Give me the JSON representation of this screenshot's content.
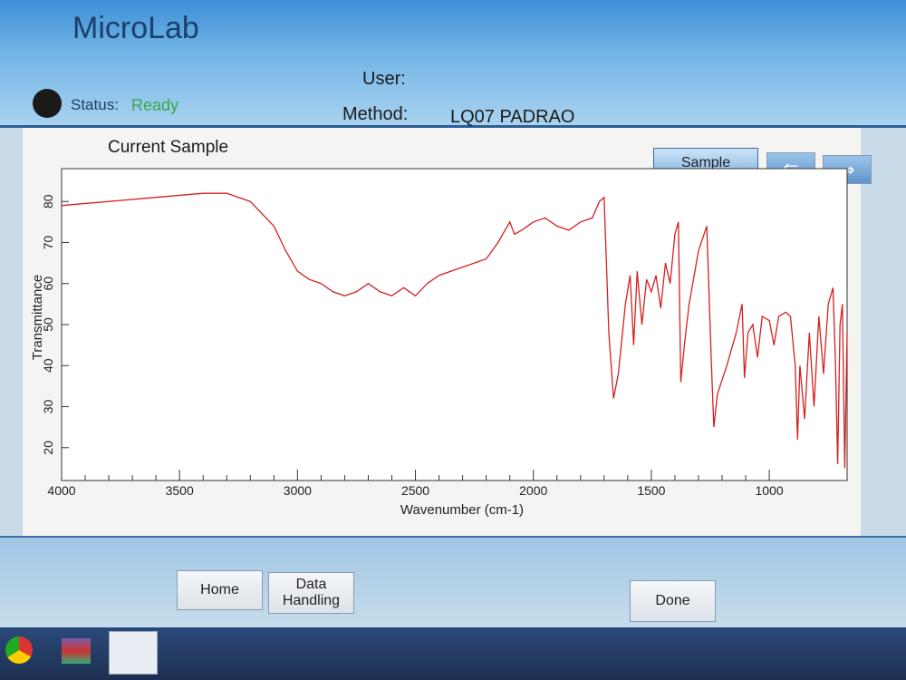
{
  "header": {
    "app_title": "MicroLab",
    "status_label": "Status:",
    "status_value": "Ready",
    "user_label": "User:",
    "method_label": "Method:",
    "method_value": "LQ07 PADRAO"
  },
  "panel": {
    "title": "Current Sample",
    "sample_button": "Sample"
  },
  "chart_data": {
    "type": "line",
    "x_label": "Wavenumber (cm-1)",
    "y_label": "Transmittance",
    "color": "#d42020",
    "x": [
      4000,
      3800,
      3600,
      3400,
      3300,
      3200,
      3100,
      3050,
      3000,
      2950,
      2900,
      2850,
      2800,
      2750,
      2700,
      2650,
      2600,
      2550,
      2500,
      2450,
      2400,
      2300,
      2200,
      2150,
      2100,
      2080,
      2050,
      2000,
      1950,
      1900,
      1850,
      1800,
      1750,
      1720,
      1700,
      1680,
      1660,
      1640,
      1610,
      1590,
      1575,
      1560,
      1540,
      1520,
      1500,
      1480,
      1460,
      1440,
      1420,
      1400,
      1385,
      1375,
      1360,
      1340,
      1300,
      1265,
      1245,
      1235,
      1220,
      1180,
      1140,
      1115,
      1105,
      1090,
      1070,
      1050,
      1030,
      1000,
      980,
      960,
      930,
      910,
      890,
      880,
      870,
      850,
      830,
      810,
      790,
      770,
      750,
      730,
      720,
      710,
      700,
      690,
      680,
      670
    ],
    "values": [
      79,
      80,
      81,
      82,
      82,
      80,
      74,
      68,
      63,
      61,
      60,
      58,
      57,
      58,
      60,
      58,
      57,
      59,
      57,
      60,
      62,
      64,
      66,
      70,
      75,
      72,
      73,
      75,
      76,
      74,
      73,
      75,
      76,
      80,
      81,
      48,
      32,
      38,
      55,
      62,
      45,
      63,
      50,
      61,
      58,
      62,
      54,
      65,
      60,
      72,
      75,
      36,
      45,
      55,
      68,
      74,
      40,
      25,
      33,
      40,
      48,
      55,
      37,
      48,
      50,
      42,
      52,
      51,
      45,
      52,
      53,
      52,
      40,
      22,
      40,
      27,
      48,
      30,
      52,
      38,
      55,
      59,
      42,
      16,
      50,
      55,
      15,
      48
    ],
    "xlim": [
      4000,
      670
    ],
    "xticks": [
      4000,
      3500,
      3000,
      2500,
      2000,
      1500,
      1000
    ],
    "ylim": [
      12,
      88
    ],
    "yticks": [
      20,
      30,
      40,
      50,
      60,
      70,
      80
    ]
  },
  "footer": {
    "buttons": [
      "Home",
      "Data Handling",
      "Done"
    ]
  }
}
